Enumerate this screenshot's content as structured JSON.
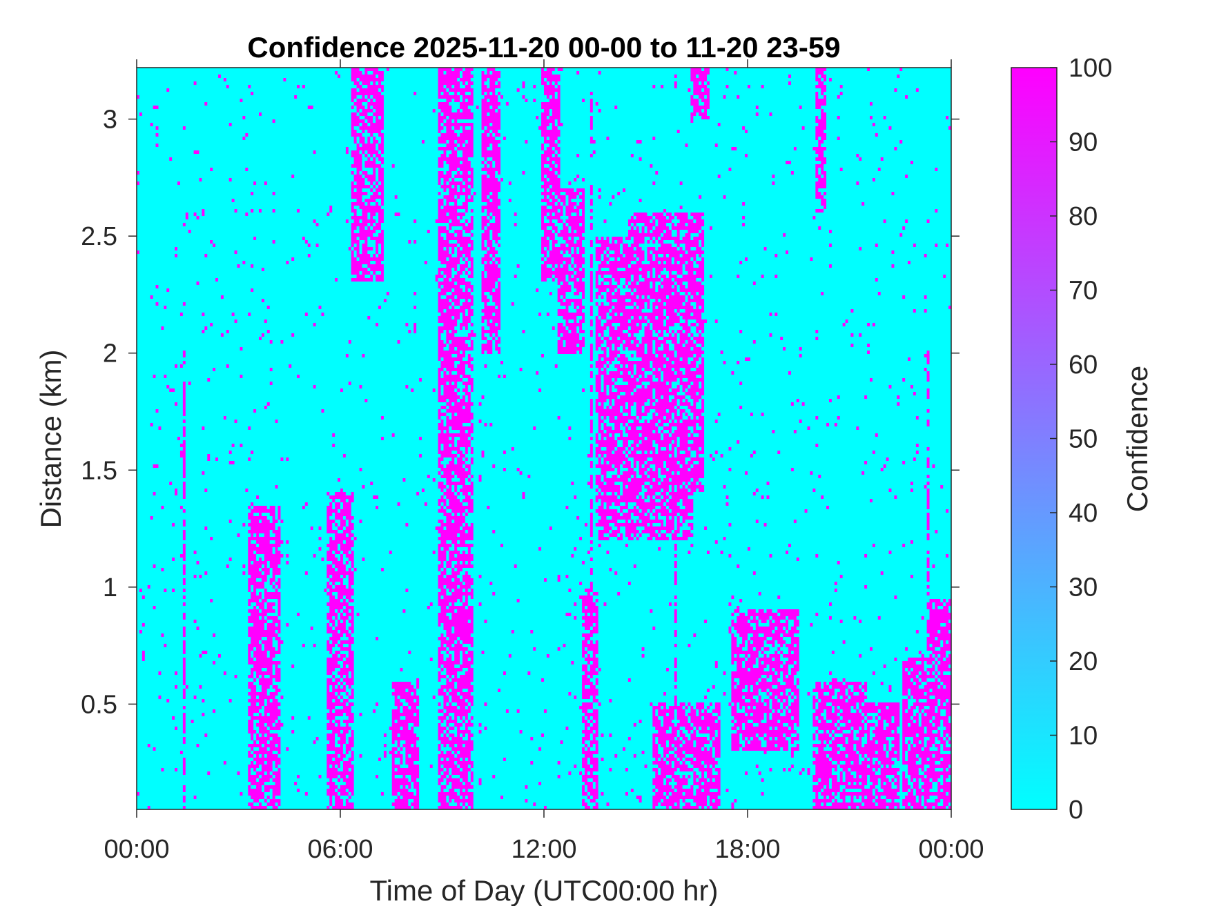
{
  "chart_data": {
    "type": "heatmap",
    "title": "Confidence 2025-11-20 00-00 to 11-20 23-59",
    "xlabel": "Time of Day (UTC00:00 hr)",
    "ylabel": "Distance (km)",
    "x_unit": "hours",
    "xlim": [
      0,
      24
    ],
    "ylim": [
      0.05,
      3.22
    ],
    "x_ticks": [
      0,
      6,
      12,
      18,
      24
    ],
    "x_tick_labels": [
      "00:00",
      "06:00",
      "12:00",
      "18:00",
      "00:00"
    ],
    "y_ticks": [
      0.5,
      1,
      1.5,
      2,
      2.5,
      3
    ],
    "y_tick_labels": [
      "0.5",
      "1",
      "1.5",
      "2",
      "2.5",
      "3"
    ],
    "colorbar": {
      "label": "Confidence",
      "range": [
        0,
        100
      ],
      "ticks": [
        0,
        10,
        20,
        30,
        40,
        50,
        60,
        70,
        80,
        90,
        100
      ],
      "tick_labels": [
        "0",
        "10",
        "20",
        "30",
        "40",
        "50",
        "60",
        "70",
        "80",
        "90",
        "100"
      ],
      "color_low": "#00ffff",
      "color_high": "#ff00ff"
    },
    "grid": false,
    "background_value": 0,
    "high_confidence_regions": [
      {
        "x": [
          3.3,
          4.2
        ],
        "y": [
          0.05,
          1.35
        ]
      },
      {
        "x": [
          5.6,
          6.4
        ],
        "y": [
          0.05,
          1.4
        ]
      },
      {
        "x": [
          6.3,
          7.3
        ],
        "y": [
          2.3,
          3.22
        ]
      },
      {
        "x": [
          7.5,
          8.3
        ],
        "y": [
          0.05,
          0.6
        ]
      },
      {
        "x": [
          8.9,
          9.9
        ],
        "y": [
          0.05,
          3.22
        ]
      },
      {
        "x": [
          10.2,
          10.7
        ],
        "y": [
          2.0,
          3.22
        ]
      },
      {
        "x": [
          11.9,
          12.5
        ],
        "y": [
          2.3,
          3.22
        ]
      },
      {
        "x": [
          12.4,
          13.2
        ],
        "y": [
          2.0,
          2.7
        ]
      },
      {
        "x": [
          13.1,
          13.6
        ],
        "y": [
          0.05,
          1.0
        ]
      },
      {
        "x": [
          13.5,
          16.4
        ],
        "y": [
          1.2,
          2.5
        ]
      },
      {
        "x": [
          14.5,
          16.7
        ],
        "y": [
          1.4,
          2.6
        ]
      },
      {
        "x": [
          16.3,
          16.9
        ],
        "y": [
          3.0,
          3.22
        ]
      },
      {
        "x": [
          15.2,
          17.2
        ],
        "y": [
          0.05,
          0.5
        ]
      },
      {
        "x": [
          17.5,
          19.5
        ],
        "y": [
          0.3,
          0.9
        ]
      },
      {
        "x": [
          20.0,
          21.5
        ],
        "y": [
          0.05,
          0.6
        ]
      },
      {
        "x": [
          21.5,
          22.5
        ],
        "y": [
          0.05,
          0.5
        ]
      },
      {
        "x": [
          22.6,
          24.0
        ],
        "y": [
          0.05,
          0.7
        ]
      },
      {
        "x": [
          23.4,
          24.0
        ],
        "y": [
          0.05,
          0.95
        ]
      },
      {
        "x": [
          20.0,
          20.3
        ],
        "y": [
          2.6,
          3.22
        ]
      }
    ]
  }
}
